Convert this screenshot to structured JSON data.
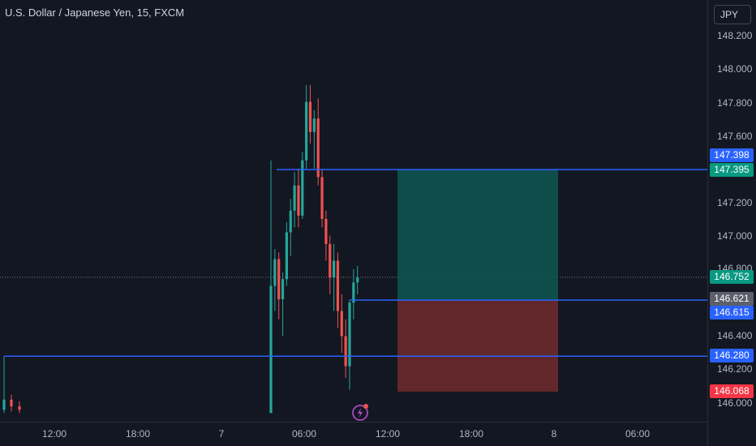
{
  "header": {
    "symbol_title": "U.S. Dollar / Japanese Yen, 15, FXCM",
    "currency_button": "JPY"
  },
  "colors": {
    "background": "#131722",
    "bull": "#26a69a",
    "bear": "#ef5350",
    "line": "#2962ff",
    "profit_zone": "#0f5350",
    "loss_zone": "#6b2a2e"
  },
  "price_axis": {
    "ticks": [
      "148.200",
      "148.000",
      "147.800",
      "147.600",
      "147.200",
      "147.000",
      "146.800",
      "146.400",
      "146.200",
      "146.000"
    ],
    "badges": {
      "upper_line": "147.398",
      "target": "147.395",
      "current": "146.752",
      "entry_marker": "146.621",
      "entry": "146.615",
      "lower_line": "146.280",
      "stop": "146.068"
    }
  },
  "time_axis": {
    "ticks": [
      "12:00",
      "18:00",
      "7",
      "06:00",
      "12:00",
      "18:00",
      "8",
      "06:00"
    ]
  },
  "chart_data": {
    "type": "candlestick",
    "ylim": [
      145.94,
      148.3
    ],
    "horizontal_lines": [
      147.395,
      146.615,
      146.28
    ],
    "current_price": 146.752,
    "position": {
      "target": 147.395,
      "entry": 146.615,
      "stop": 146.068
    },
    "candles": [
      {
        "o": 145.96,
        "h": 146.28,
        "l": 145.94,
        "c": 146.02
      },
      {
        "o": 146.02,
        "h": 146.05,
        "l": 145.95,
        "c": 145.98
      },
      {
        "o": 145.98,
        "h": 146.01,
        "l": 145.94,
        "c": 145.96
      },
      {
        "o": 145.94,
        "h": 147.45,
        "l": 145.94,
        "c": 146.7
      },
      {
        "o": 146.7,
        "h": 146.92,
        "l": 146.55,
        "c": 146.86
      },
      {
        "o": 146.86,
        "h": 146.9,
        "l": 146.5,
        "c": 146.62
      },
      {
        "o": 146.62,
        "h": 146.78,
        "l": 146.4,
        "c": 146.74
      },
      {
        "o": 146.74,
        "h": 147.08,
        "l": 146.7,
        "c": 147.02
      },
      {
        "o": 147.02,
        "h": 147.22,
        "l": 146.88,
        "c": 147.15
      },
      {
        "o": 147.15,
        "h": 147.38,
        "l": 147.05,
        "c": 147.3
      },
      {
        "o": 147.3,
        "h": 147.4,
        "l": 147.05,
        "c": 147.12
      },
      {
        "o": 147.12,
        "h": 147.5,
        "l": 147.1,
        "c": 147.45
      },
      {
        "o": 147.45,
        "h": 147.9,
        "l": 147.4,
        "c": 147.8
      },
      {
        "o": 147.8,
        "h": 147.9,
        "l": 147.55,
        "c": 147.62
      },
      {
        "o": 147.62,
        "h": 147.75,
        "l": 147.4,
        "c": 147.7
      },
      {
        "o": 147.7,
        "h": 147.82,
        "l": 147.3,
        "c": 147.35
      },
      {
        "o": 147.35,
        "h": 147.4,
        "l": 147.05,
        "c": 147.1
      },
      {
        "o": 147.1,
        "h": 147.15,
        "l": 146.85,
        "c": 146.95
      },
      {
        "o": 146.95,
        "h": 147.0,
        "l": 146.65,
        "c": 146.75
      },
      {
        "o": 146.75,
        "h": 146.95,
        "l": 146.55,
        "c": 146.85
      },
      {
        "o": 146.85,
        "h": 146.9,
        "l": 146.45,
        "c": 146.55
      },
      {
        "o": 146.55,
        "h": 146.65,
        "l": 146.3,
        "c": 146.4
      },
      {
        "o": 146.4,
        "h": 146.5,
        "l": 146.15,
        "c": 146.22
      },
      {
        "o": 146.22,
        "h": 146.62,
        "l": 146.08,
        "c": 146.6
      },
      {
        "o": 146.6,
        "h": 146.8,
        "l": 146.5,
        "c": 146.72
      },
      {
        "o": 146.72,
        "h": 146.82,
        "l": 146.65,
        "c": 146.75
      }
    ]
  }
}
